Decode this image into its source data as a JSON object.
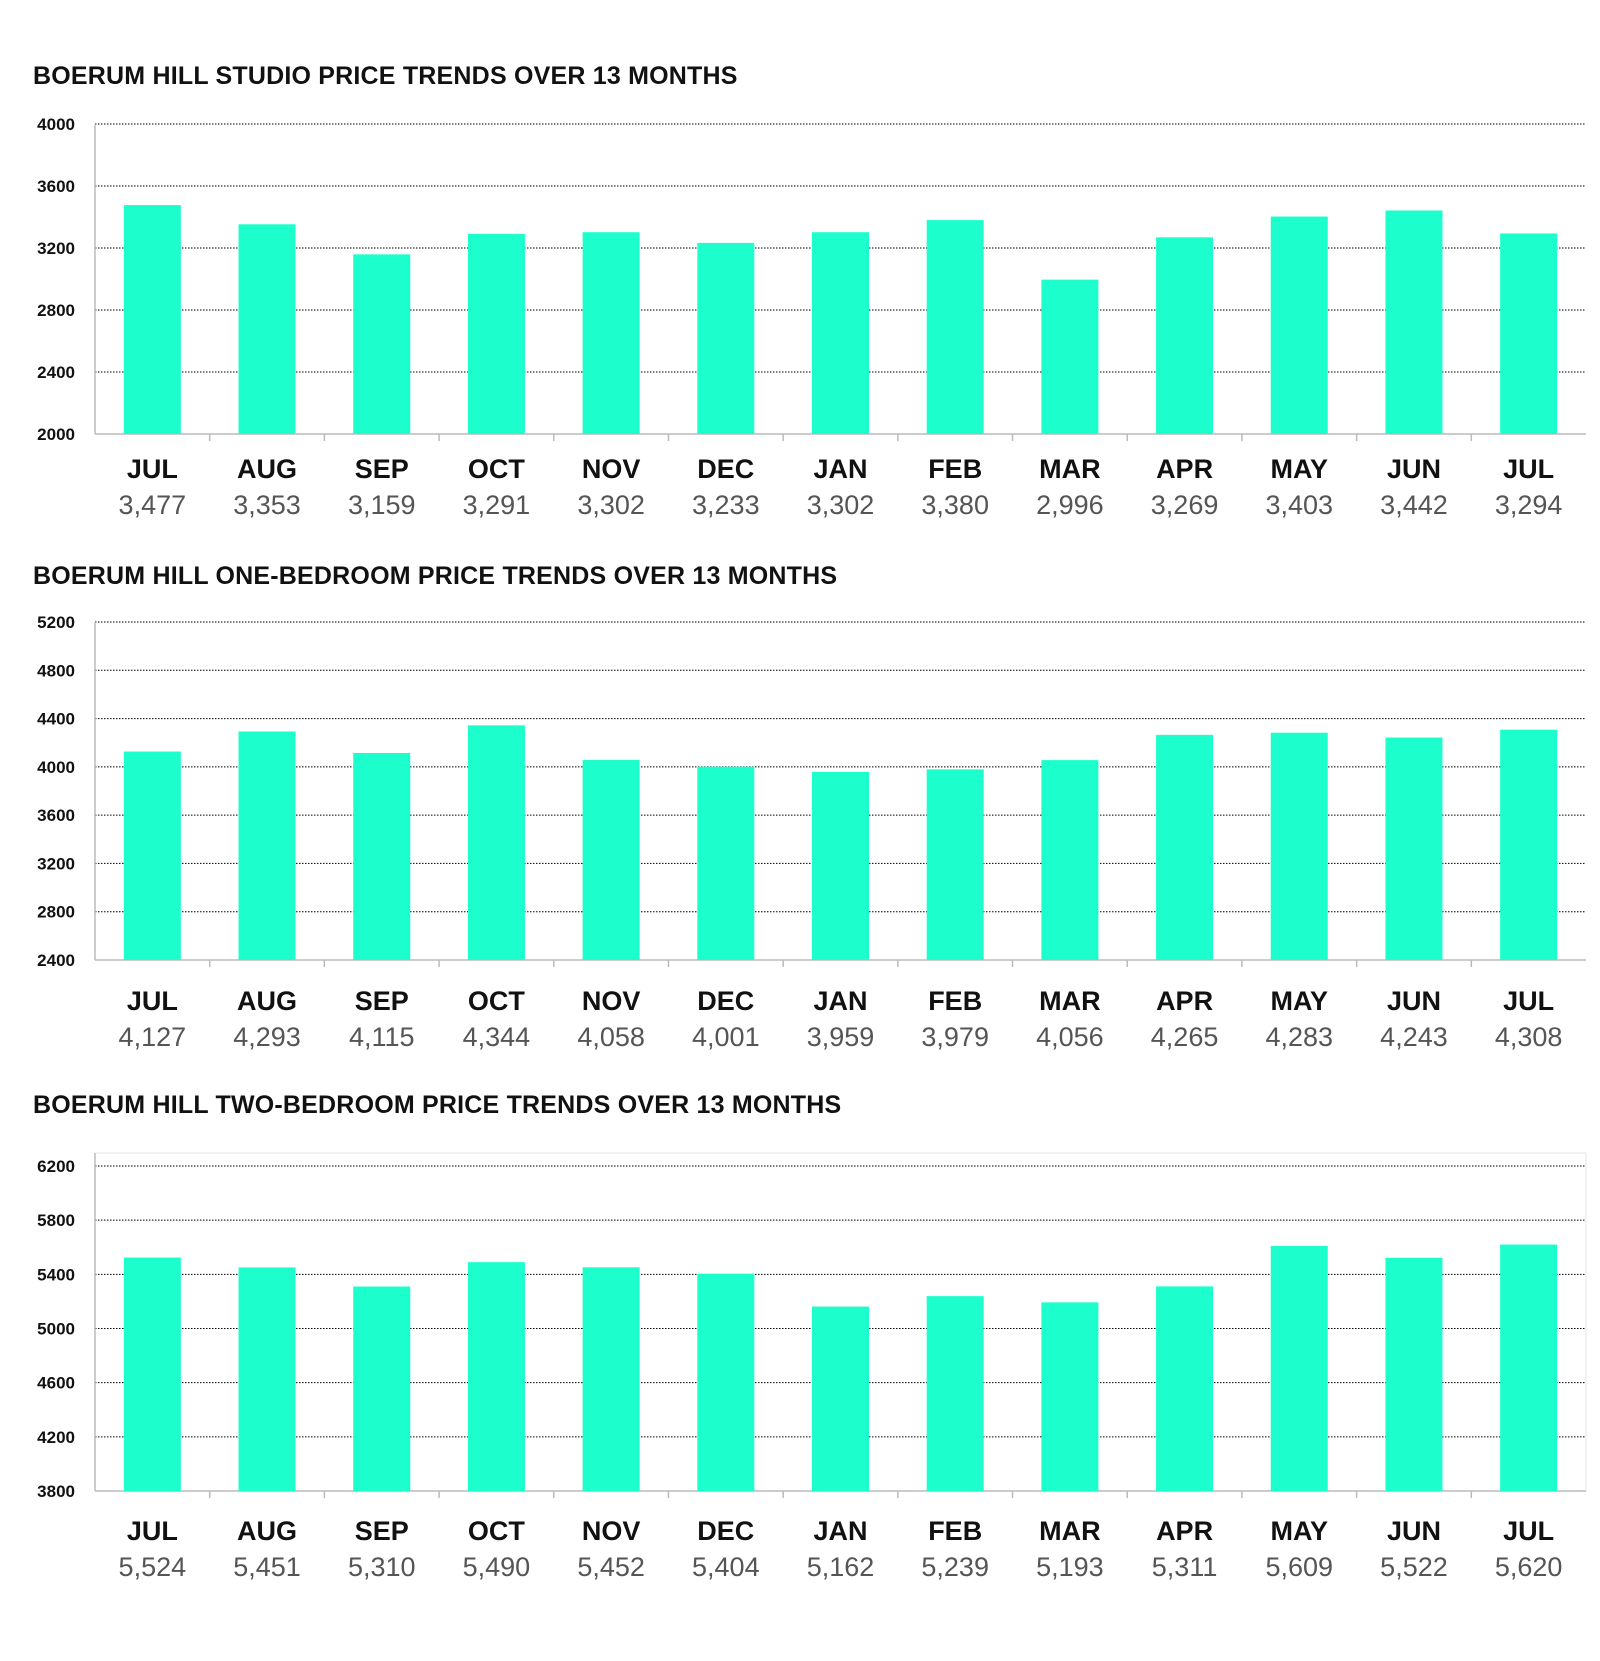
{
  "colors": {
    "bar": "#1cffcc",
    "grid": "#000000",
    "axis": "#bbbbbb"
  },
  "chart_data": [
    {
      "type": "bar",
      "title": "BOERUM HILL STUDIO PRICE TRENDS OVER 13 MONTHS",
      "categories": [
        "JUL",
        "AUG",
        "SEP",
        "OCT",
        "NOV",
        "DEC",
        "JAN",
        "FEB",
        "MAR",
        "APR",
        "MAY",
        "JUN",
        "JUL"
      ],
      "values": [
        3477,
        3353,
        3159,
        3291,
        3302,
        3233,
        3302,
        3380,
        2996,
        3269,
        3403,
        3442,
        3294
      ],
      "value_labels": [
        "3,477",
        "3,353",
        "3,159",
        "3,291",
        "3,302",
        "3,233",
        "3,302",
        "3,380",
        "2,996",
        "3,269",
        "3,403",
        "3,442",
        "3,294"
      ],
      "yticks": [
        "4000",
        "3600",
        "3200",
        "2800",
        "2400",
        "2000"
      ],
      "ylim": [
        2000,
        4000
      ],
      "grid": true
    },
    {
      "type": "bar",
      "title": "BOERUM HILL ONE-BEDROOM PRICE TRENDS OVER 13 MONTHS",
      "categories": [
        "JUL",
        "AUG",
        "SEP",
        "OCT",
        "NOV",
        "DEC",
        "JAN",
        "FEB",
        "MAR",
        "APR",
        "MAY",
        "JUN",
        "JUL"
      ],
      "values": [
        4127,
        4293,
        4115,
        4344,
        4058,
        4001,
        3959,
        3979,
        4056,
        4265,
        4283,
        4243,
        4308
      ],
      "value_labels": [
        "4,127",
        "4,293",
        "4,115",
        "4,344",
        "4,058",
        "4,001",
        "3,959",
        "3,979",
        "4,056",
        "4,265",
        "4,283",
        "4,243",
        "4,308"
      ],
      "yticks": [
        "5200",
        "4800",
        "4400",
        "4000",
        "3600",
        "3200",
        "2800",
        "2400"
      ],
      "ylim": [
        2400,
        5200
      ],
      "grid": true
    },
    {
      "type": "bar",
      "title": "BOERUM HILL TWO-BEDROOM PRICE TRENDS OVER 13 MONTHS",
      "categories": [
        "JUL",
        "AUG",
        "SEP",
        "OCT",
        "NOV",
        "DEC",
        "JAN",
        "FEB",
        "MAR",
        "APR",
        "MAY",
        "JUN",
        "JUL"
      ],
      "values": [
        5524,
        5451,
        5310,
        5490,
        5452,
        5404,
        5162,
        5239,
        5193,
        5311,
        5609,
        5522,
        5620
      ],
      "value_labels": [
        "5,524",
        "5,451",
        "5,310",
        "5,490",
        "5,452",
        "5,404",
        "5,162",
        "5,239",
        "5,193",
        "5,311",
        "5,609",
        "5,522",
        "5,620"
      ],
      "yticks": [
        "6200",
        "5800",
        "5400",
        "5000",
        "4600",
        "4200",
        "3800"
      ],
      "ylim": [
        3800,
        6300
      ],
      "grid": true
    }
  ]
}
